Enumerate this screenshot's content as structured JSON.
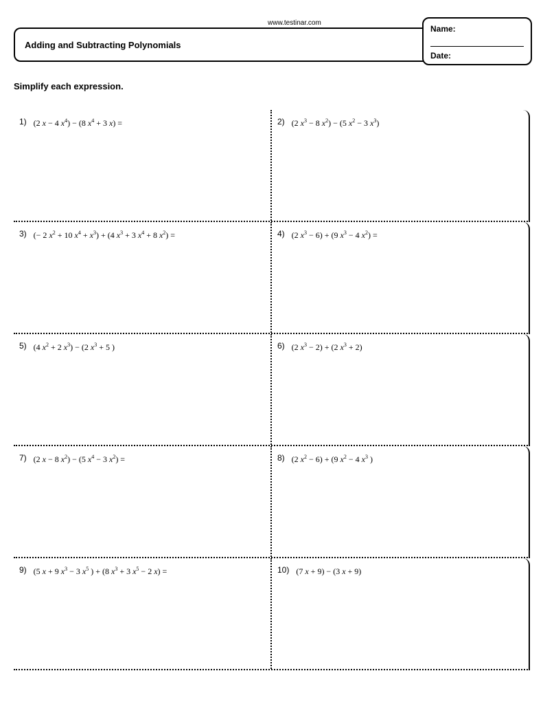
{
  "url": "www.testinar.com",
  "header": {
    "name_label": "Name:",
    "date_label": "Date:"
  },
  "title": "Adding and Subtracting Polynomials",
  "instruction": "Simplify each expression.",
  "problems": [
    {
      "num": "1)",
      "expr": "(2 <i>x</i> − 4 <i>x</i><sup>4</sup>) − (8 <i>x</i><sup>4</sup> + 3 <i>x</i>) ="
    },
    {
      "num": "2)",
      "expr": "(2 <i>x</i><sup>3</sup> − 8 <i>x</i><sup>2</sup>) − (5 <i>x</i><sup>2</sup> − 3 <i>x</i><sup>3</sup>)"
    },
    {
      "num": "3)",
      "expr": "(− 2 <i>x</i><sup>2</sup> + 10 <i>x</i><sup>4</sup> + <i>x</i><sup>3</sup>) + (4 <i>x</i><sup>3</sup> + 3 <i>x</i><sup>4</sup> + 8 <i>x</i><sup>2</sup>) ="
    },
    {
      "num": "4)",
      "expr": "(2 <i>x</i><sup>3</sup> − 6) + (9 <i>x</i><sup>3</sup> − 4 <i>x</i><sup>2</sup>) ="
    },
    {
      "num": "5)",
      "expr": "(4 <i>x</i><sup>2</sup> + 2 <i>x</i><sup>3</sup>) − (2 <i>x</i><sup>3</sup> + 5 )"
    },
    {
      "num": "6)",
      "expr": "(2 <i>x</i><sup>3</sup> − 2) + (2 <i>x</i><sup>3</sup> + 2)"
    },
    {
      "num": "7)",
      "expr": "(2 <i>x</i> − 8 <i>x</i><sup>2</sup>) − (5 <i>x</i><sup>4</sup> − 3 <i>x</i><sup>2</sup>) ="
    },
    {
      "num": "8)",
      "expr": "(2 <i>x</i><sup>2</sup> − 6) + (9 <i>x</i><sup>2</sup> − 4 <i>x</i><sup>3</sup> )"
    },
    {
      "num": "9)",
      "expr": "(5 <i>x</i> + 9 <i>x</i><sup>3</sup> − 3 <i>x</i><sup>5</sup> ) + (8 <i>x</i><sup>3</sup> + 3 <i>x</i><sup>5</sup> − 2 <i>x</i>) ="
    },
    {
      "num": "10)",
      "expr": "(7 <i>x</i> + 9) − (3 <i>x</i> + 9)"
    }
  ]
}
